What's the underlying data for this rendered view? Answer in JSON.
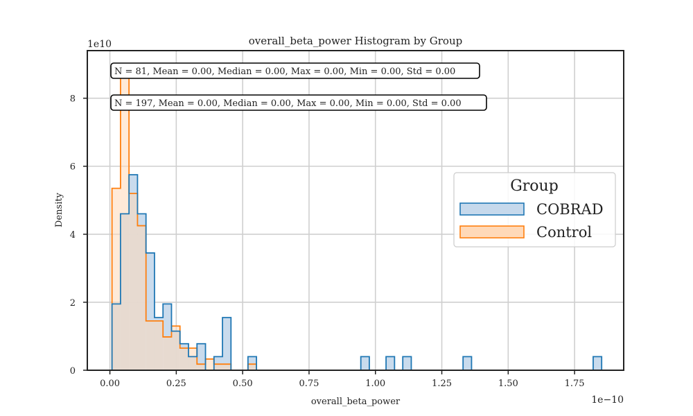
{
  "chart_data": {
    "type": "histogram",
    "title": "overall_beta_power Histogram by Group",
    "xlabel": "overall_beta_power",
    "ylabel": "Density",
    "x_exponent_label": "1e−10",
    "y_exponent_label": "1e10",
    "xlim": [
      -0.085,
      1.935
    ],
    "ylim": [
      0,
      9.4
    ],
    "x_ticks": [
      0.0,
      0.25,
      0.5,
      0.75,
      1.0,
      1.25,
      1.5,
      1.75
    ],
    "x_tick_labels": [
      "0.00",
      "0.25",
      "0.50",
      "0.75",
      "1.00",
      "1.25",
      "1.50",
      "1.75"
    ],
    "y_ticks": [
      0,
      2,
      4,
      6,
      8
    ],
    "y_tick_labels": [
      "0",
      "2",
      "4",
      "6",
      "8"
    ],
    "grid": true,
    "legend": {
      "title": "Group",
      "placement": "center-right"
    },
    "annotations": [
      "N = 81, Mean = 0.00, Median = 0.00, Max = 0.00, Min = 0.00, Std = 0.00",
      "N = 197, Mean = 0.00, Median = 0.00, Max = 0.00, Min = 0.00, Std = 0.00"
    ],
    "series": [
      {
        "name": "COBRAD",
        "color": "#1f77b4",
        "fill": "#c6d9ec",
        "bins": [
          [
            0.008,
            0.04,
            1.95
          ],
          [
            0.04,
            0.072,
            4.6
          ],
          [
            0.072,
            0.104,
            5.75
          ],
          [
            0.104,
            0.136,
            4.6
          ],
          [
            0.136,
            0.168,
            3.45
          ],
          [
            0.168,
            0.2,
            1.55
          ],
          [
            0.2,
            0.232,
            1.95
          ],
          [
            0.232,
            0.264,
            1.15
          ],
          [
            0.264,
            0.296,
            0.78
          ],
          [
            0.296,
            0.328,
            0.4
          ],
          [
            0.328,
            0.36,
            0.78
          ],
          [
            0.36,
            0.392,
            0.0
          ],
          [
            0.392,
            0.424,
            0.4
          ],
          [
            0.424,
            0.456,
            1.55
          ],
          [
            0.456,
            0.52,
            0.0
          ],
          [
            0.52,
            0.552,
            0.4
          ],
          [
            0.945,
            0.977,
            0.4
          ],
          [
            1.04,
            1.072,
            0.4
          ],
          [
            1.103,
            1.135,
            0.4
          ],
          [
            1.33,
            1.362,
            0.4
          ],
          [
            1.82,
            1.852,
            0.4
          ]
        ]
      },
      {
        "name": "Control",
        "color": "#ff7f0e",
        "fill": "#ffd9b8",
        "bins": [
          [
            0.008,
            0.04,
            5.35
          ],
          [
            0.04,
            0.072,
            8.7
          ],
          [
            0.072,
            0.104,
            5.2
          ],
          [
            0.104,
            0.136,
            4.25
          ],
          [
            0.136,
            0.168,
            1.45
          ],
          [
            0.168,
            0.2,
            1.45
          ],
          [
            0.2,
            0.232,
            0.98
          ],
          [
            0.232,
            0.264,
            1.3
          ],
          [
            0.264,
            0.296,
            0.65
          ],
          [
            0.296,
            0.328,
            0.65
          ],
          [
            0.328,
            0.36,
            0.18
          ],
          [
            0.36,
            0.392,
            0.33
          ],
          [
            0.392,
            0.424,
            0.18
          ],
          [
            0.424,
            0.456,
            0.18
          ],
          [
            0.456,
            0.52,
            0.0
          ],
          [
            0.52,
            0.552,
            0.18
          ]
        ]
      }
    ]
  }
}
